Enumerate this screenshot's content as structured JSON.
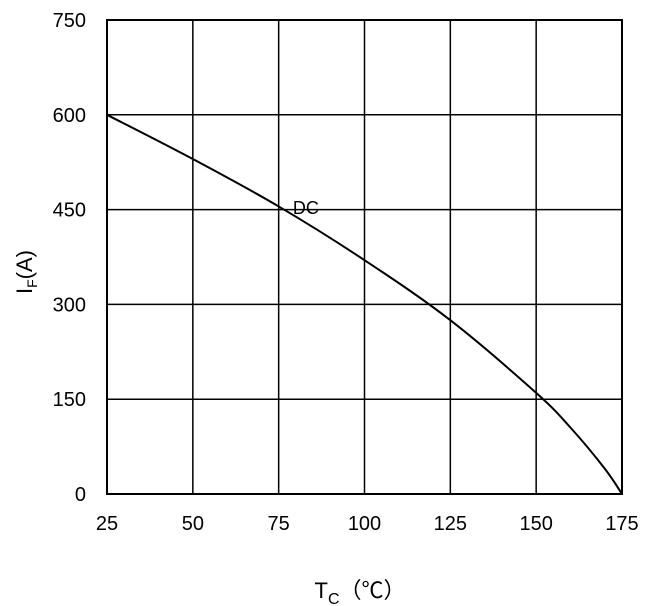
{
  "chart_data": {
    "type": "line",
    "title": "",
    "xlabel": {
      "main": "T",
      "sub": "C",
      "unit": "（℃）"
    },
    "ylabel": {
      "main": "I",
      "sub": "F",
      "unit": "(A)"
    },
    "xlim": [
      25,
      175
    ],
    "ylim": [
      0,
      750
    ],
    "xticks": [
      "25",
      "50",
      "75",
      "100",
      "125",
      "150",
      "175"
    ],
    "yticks": [
      "0",
      "150",
      "300",
      "450",
      "600",
      "750"
    ],
    "grid": true,
    "series": [
      {
        "name": "DC",
        "x": [
          25,
          50,
          75,
          100,
          125,
          150,
          160,
          170,
          175
        ],
        "y": [
          600,
          530,
          455,
          370,
          275,
          160,
          105,
          40,
          0
        ]
      }
    ],
    "annotations": [
      {
        "text": "DC",
        "x": 80,
        "y": 475
      }
    ]
  }
}
